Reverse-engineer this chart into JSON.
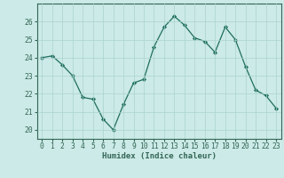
{
  "x": [
    0,
    1,
    2,
    3,
    4,
    5,
    6,
    7,
    8,
    9,
    10,
    11,
    12,
    13,
    14,
    15,
    16,
    17,
    18,
    19,
    20,
    21,
    22,
    23
  ],
  "y": [
    24.0,
    24.1,
    23.6,
    23.0,
    21.8,
    21.7,
    20.6,
    20.0,
    21.4,
    22.6,
    22.8,
    24.6,
    25.7,
    26.3,
    25.8,
    25.1,
    24.9,
    24.3,
    25.7,
    25.0,
    23.5,
    22.2,
    21.9,
    21.2
  ],
  "line_color": "#1f6e5e",
  "marker": "D",
  "marker_size": 2.2,
  "bg_color": "#cceae7",
  "grid_color": "#aad4d0",
  "xlabel": "Humidex (Indice chaleur)",
  "ylim": [
    19.5,
    27.0
  ],
  "xlim": [
    -0.5,
    23.5
  ],
  "yticks": [
    20,
    21,
    22,
    23,
    24,
    25,
    26
  ],
  "xticks": [
    0,
    1,
    2,
    3,
    4,
    5,
    6,
    7,
    8,
    9,
    10,
    11,
    12,
    13,
    14,
    15,
    16,
    17,
    18,
    19,
    20,
    21,
    22,
    23
  ],
  "label_fontsize": 6.5,
  "tick_fontsize": 5.8,
  "spine_color": "#336655"
}
